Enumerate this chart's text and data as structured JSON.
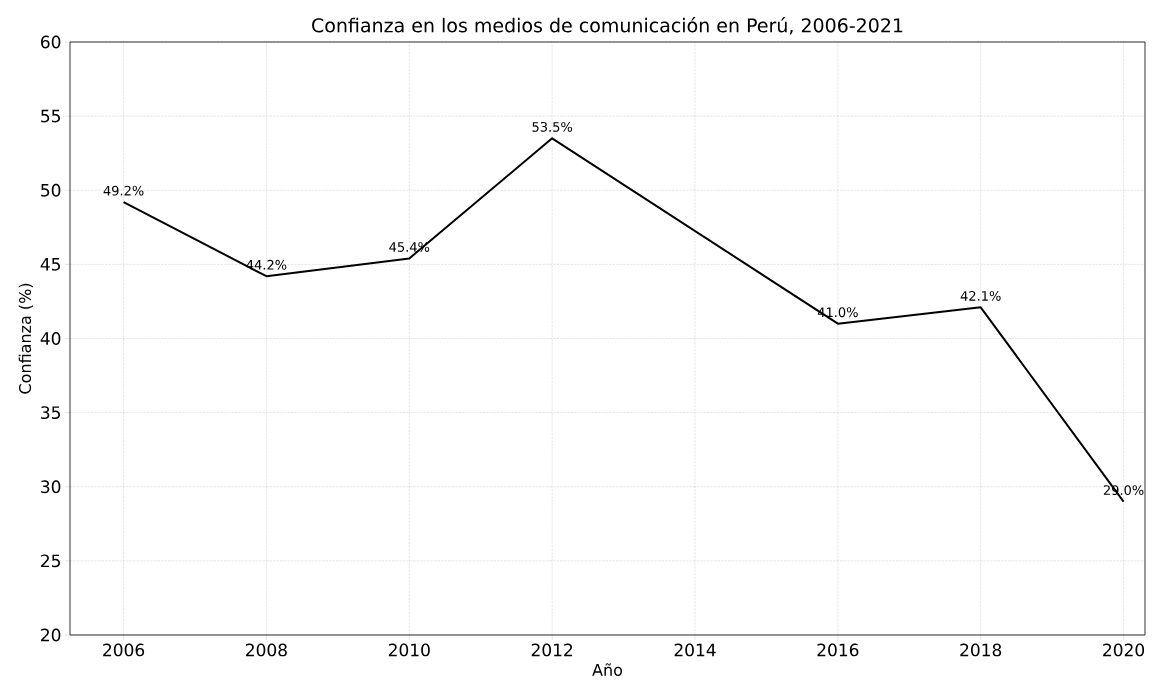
{
  "chart_data": {
    "type": "line",
    "title": "Confianza en los medios de comunicación en Perú, 2006-2021",
    "xlabel": "Año",
    "ylabel": "Confianza (%)",
    "x": [
      2006,
      2008,
      2010,
      2012,
      2016,
      2018,
      2020
    ],
    "series": [
      {
        "color": "#000000",
        "values": [
          49.2,
          44.2,
          45.4,
          53.5,
          41.0,
          42.1,
          29.0
        ],
        "value_labels": [
          "49.2%",
          "44.2%",
          "45.4%",
          "53.5%",
          "41.0%",
          "42.1%",
          "29.0%"
        ]
      }
    ],
    "xlim": [
      2005.25,
      2020.3
    ],
    "ylim": [
      20,
      60
    ],
    "xticks": [
      2006,
      2008,
      2010,
      2012,
      2014,
      2016,
      2018,
      2020
    ],
    "yticks": [
      20,
      25,
      30,
      35,
      40,
      45,
      50,
      55,
      60
    ],
    "grid": true,
    "marker": "none",
    "line_style": "solid"
  }
}
